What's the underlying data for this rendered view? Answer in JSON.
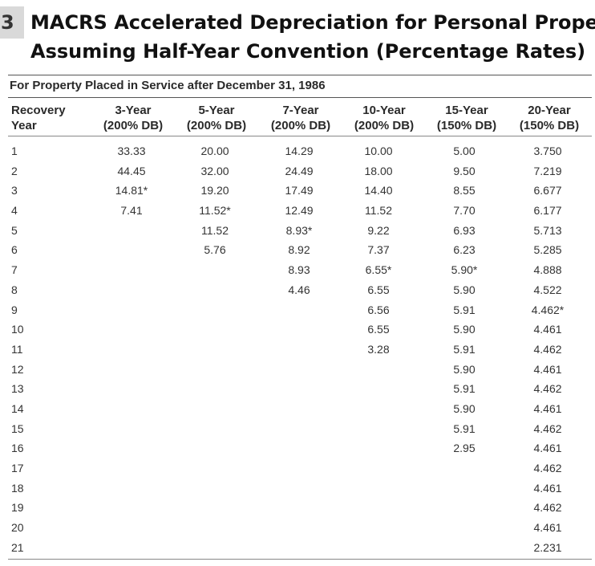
{
  "badge": "3",
  "title": {
    "line1": "MACRS Accelerated Depreciation for Personal Propert",
    "line2": "Assuming Half-Year Convention (Percentage Rates)"
  },
  "subtitle": "For Property Placed in Service after December 31, 1986",
  "columns": [
    {
      "line1": "Recovery",
      "line2": "Year"
    },
    {
      "line1": "3-Year",
      "line2": "(200% DB)"
    },
    {
      "line1": "5-Year",
      "line2": "(200% DB)"
    },
    {
      "line1": "7-Year",
      "line2": "(200% DB)"
    },
    {
      "line1": "10-Year",
      "line2": "(200% DB)"
    },
    {
      "line1": "15-Year",
      "line2": "(150% DB)"
    },
    {
      "line1": "20-Year",
      "line2": "(150% DB)"
    }
  ],
  "rows": [
    [
      "1",
      "33.33",
      "20.00",
      "14.29",
      "10.00",
      "5.00",
      "3.750"
    ],
    [
      "2",
      "44.45",
      "32.00",
      "24.49",
      "18.00",
      "9.50",
      "7.219"
    ],
    [
      "3",
      "14.81*",
      "19.20",
      "17.49",
      "14.40",
      "8.55",
      "6.677"
    ],
    [
      "4",
      "7.41",
      "11.52*",
      "12.49",
      "11.52",
      "7.70",
      "6.177"
    ],
    [
      "5",
      "",
      "11.52",
      "8.93*",
      "9.22",
      "6.93",
      "5.713"
    ],
    [
      "6",
      "",
      "5.76",
      "8.92",
      "7.37",
      "6.23",
      "5.285"
    ],
    [
      "7",
      "",
      "",
      "8.93",
      "6.55*",
      "5.90*",
      "4.888"
    ],
    [
      "8",
      "",
      "",
      "4.46",
      "6.55",
      "5.90",
      "4.522"
    ],
    [
      "9",
      "",
      "",
      "",
      "6.56",
      "5.91",
      "4.462*"
    ],
    [
      "10",
      "",
      "",
      "",
      "6.55",
      "5.90",
      "4.461"
    ],
    [
      "11",
      "",
      "",
      "",
      "3.28",
      "5.91",
      "4.462"
    ],
    [
      "12",
      "",
      "",
      "",
      "",
      "5.90",
      "4.461"
    ],
    [
      "13",
      "",
      "",
      "",
      "",
      "5.91",
      "4.462"
    ],
    [
      "14",
      "",
      "",
      "",
      "",
      "5.90",
      "4.461"
    ],
    [
      "15",
      "",
      "",
      "",
      "",
      "5.91",
      "4.462"
    ],
    [
      "16",
      "",
      "",
      "",
      "",
      "2.95",
      "4.461"
    ],
    [
      "17",
      "",
      "",
      "",
      "",
      "",
      "4.462"
    ],
    [
      "18",
      "",
      "",
      "",
      "",
      "",
      "4.461"
    ],
    [
      "19",
      "",
      "",
      "",
      "",
      "",
      "4.462"
    ],
    [
      "20",
      "",
      "",
      "",
      "",
      "",
      "4.461"
    ],
    [
      "21",
      "",
      "",
      "",
      "",
      "",
      "2.231"
    ]
  ]
}
